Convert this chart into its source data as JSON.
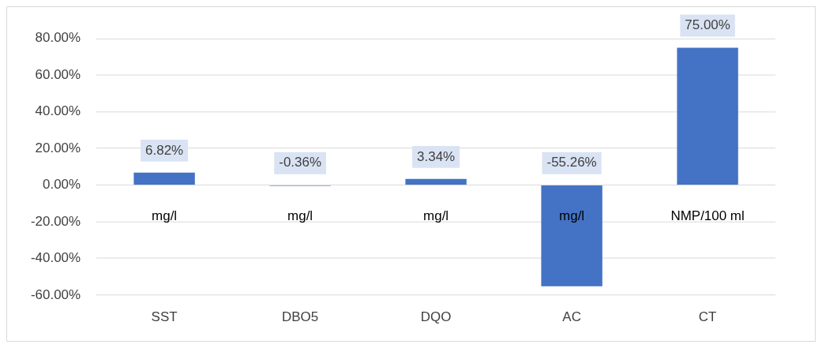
{
  "chart_data": {
    "type": "bar",
    "categories": [
      "SST",
      "DBO5",
      "DQO",
      "AC",
      "CT"
    ],
    "values": [
      6.82,
      -0.36,
      3.34,
      -55.26,
      75.0
    ],
    "value_labels": [
      "6.82%",
      "-0.36%",
      "3.34%",
      "-55.26%",
      "75.00%"
    ],
    "color": "#4472c4",
    "ylim": [
      -60,
      80
    ],
    "yticks": [
      {
        "value": -60,
        "label": "-60.00%"
      },
      {
        "value": -40,
        "label": "-40.00%"
      },
      {
        "value": -20,
        "label": "-20.00%"
      },
      {
        "value": 0,
        "label": "0.00%"
      },
      {
        "value": 20,
        "label": "20.00%"
      },
      {
        "value": 40,
        "label": "40.00%"
      },
      {
        "value": 60,
        "label": "60.00%"
      },
      {
        "value": 80,
        "label": "80.00%"
      }
    ],
    "annotations": [
      "mg/l",
      "mg/l",
      "mg/l",
      "mg/l",
      "NMP/100 ml"
    ],
    "grid": true,
    "legend": false
  }
}
